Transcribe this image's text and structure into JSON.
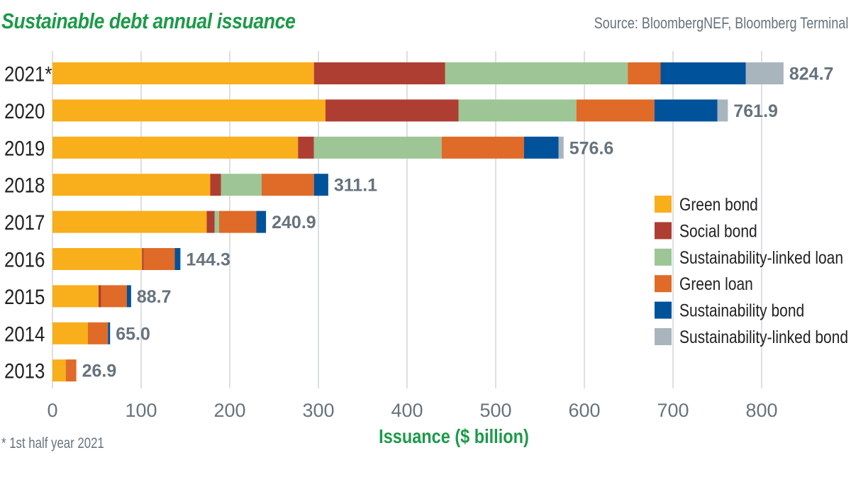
{
  "header": {
    "title": "Sustainable debt annual issuance",
    "source": "Source: BloombergNEF, Bloomberg Terminal"
  },
  "footnote": "* 1st half year 2021",
  "chart_data": {
    "type": "bar",
    "orientation": "horizontal",
    "stacked": true,
    "title": "Sustainable debt annual issuance",
    "xlabel": "Issuance ($ billion)",
    "ylabel": "",
    "xlim": [
      0,
      800
    ],
    "xticks": [
      0,
      100,
      200,
      300,
      400,
      500,
      600,
      700,
      800
    ],
    "grid": "vertical",
    "legend_position": "right",
    "categories": [
      "2021*",
      "2020",
      "2019",
      "2018",
      "2017",
      "2016",
      "2015",
      "2014",
      "2013"
    ],
    "totals": [
      "824.7",
      "761.9",
      "576.6",
      "311.1",
      "240.9",
      "144.3",
      "88.7",
      "65.0",
      "26.9"
    ],
    "total_values": [
      824.7,
      761.9,
      576.6,
      311.1,
      240.9,
      144.3,
      88.7,
      65.0,
      26.9
    ],
    "series": [
      {
        "name": "Green bond",
        "color": "#f9ae1b",
        "values": [
          295,
          308,
          277,
          178,
          174,
          101,
          52,
          40,
          15
        ]
      },
      {
        "name": "Social bond",
        "color": "#ae3e32",
        "values": [
          148,
          150,
          18,
          12,
          9,
          2,
          3,
          0,
          0
        ]
      },
      {
        "name": "Sustainability-linked loan",
        "color": "#9dc595",
        "values": [
          206,
          133,
          144,
          46,
          5,
          0,
          0,
          0,
          0
        ]
      },
      {
        "name": "Green loan",
        "color": "#e06a27",
        "values": [
          37,
          88,
          93,
          59,
          42,
          35,
          29,
          22.6,
          11.9
        ]
      },
      {
        "name": "Sustainability bond",
        "color": "#00529b",
        "values": [
          96,
          71,
          39,
          16.1,
          10.9,
          6.3,
          4.7,
          2.4,
          0
        ]
      },
      {
        "name": "Sustainability-linked bond",
        "color": "#a9b5bd",
        "values": [
          42.7,
          11.9,
          5.6,
          0,
          0,
          0,
          0,
          0,
          0
        ]
      }
    ]
  }
}
